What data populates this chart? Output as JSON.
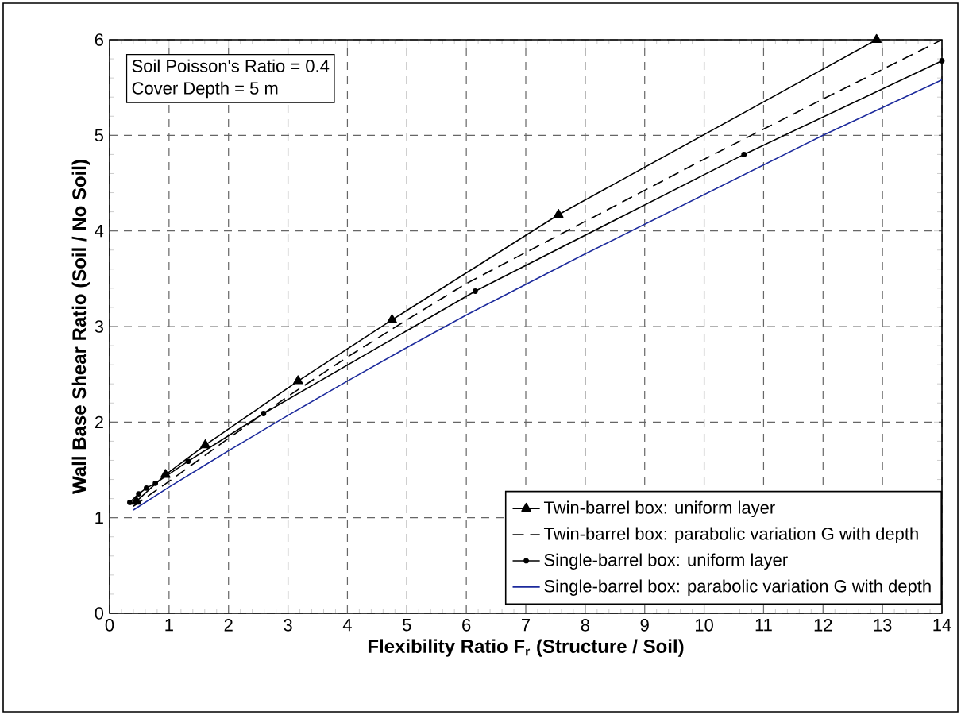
{
  "chart_data": {
    "type": "line",
    "xlabel": "Flexibility Ratio F$_{r}$ (Structure / Soil)",
    "ylabel": "Wall Base Shear Ratio (Soil / No Soil)",
    "annotations": [
      "Soil Poisson's Ratio = 0.4",
      "Cover Depth = 5 m"
    ],
    "xlim": [
      0,
      14
    ],
    "ylim": [
      0,
      6
    ],
    "xticks": [
      0,
      1,
      2,
      3,
      4,
      5,
      6,
      7,
      8,
      9,
      10,
      11,
      12,
      13,
      14
    ],
    "yticks": [
      0,
      1,
      2,
      3,
      4,
      5,
      6
    ],
    "grid": true,
    "legend": "bottom right",
    "series": [
      {
        "name": "Twin-barrel box: uniform layer",
        "color": "#000000",
        "marker": "triangle",
        "line_style": "solid",
        "x": [
          0.45,
          0.94,
          1.61,
          3.17,
          4.75,
          7.55,
          12.9
        ],
        "values": [
          1.17,
          1.45,
          1.76,
          2.43,
          3.07,
          4.17,
          6.0
        ]
      },
      {
        "name": "Twin-barrel box: parabolic variation G with depth",
        "color": "#000000",
        "marker": "none",
        "line_style": "dashed",
        "x": [
          0.4,
          1,
          2,
          3,
          4,
          5,
          6,
          8,
          10,
          12,
          14
        ],
        "values": [
          1.12,
          1.38,
          1.83,
          2.27,
          2.68,
          3.07,
          3.45,
          4.1,
          4.75,
          5.38,
          6.0
        ]
      },
      {
        "name": "Single-barrel box: uniform layer",
        "color": "#000000",
        "marker": "circle",
        "line_style": "solid",
        "x": [
          0.34,
          0.49,
          0.62,
          0.77,
          1.32,
          2.59,
          6.15,
          10.67,
          14
        ],
        "values": [
          1.16,
          1.25,
          1.31,
          1.36,
          1.59,
          2.09,
          3.37,
          4.8,
          5.78
        ]
      },
      {
        "name": "Single-barrel box: parabolic variation G with depth",
        "color": "#1c2a9c",
        "marker": "none",
        "line_style": "solid",
        "x": [
          0.4,
          1,
          2,
          3,
          4,
          5,
          6,
          8,
          10,
          12,
          14
        ],
        "values": [
          1.08,
          1.32,
          1.7,
          2.07,
          2.43,
          2.78,
          3.12,
          3.76,
          4.38,
          5.0,
          5.58
        ]
      }
    ]
  }
}
